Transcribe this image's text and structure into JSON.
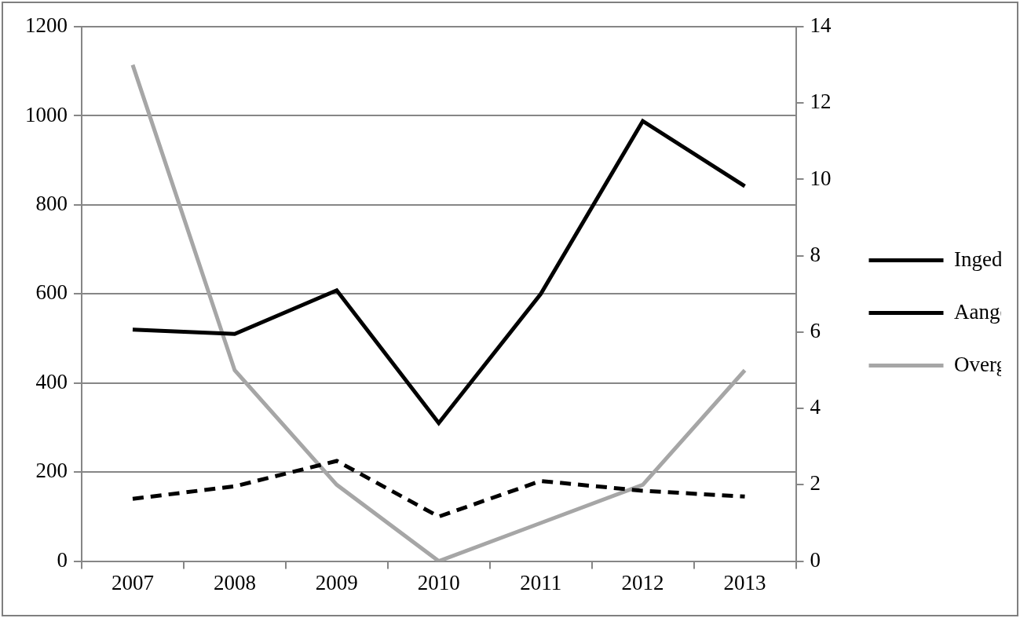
{
  "chart_data": {
    "type": "line",
    "categories": [
      "2007",
      "2008",
      "2009",
      "2010",
      "2011",
      "2012",
      "2013"
    ],
    "series": [
      {
        "name": "Ingediend (linkeras)",
        "color": "#000000",
        "line_style": "solid",
        "axis": "y",
        "values": [
          520,
          510,
          608,
          310,
          600,
          988,
          842
        ]
      },
      {
        "name": "Aangenomen (linkeras)",
        "color": "#000000",
        "line_style": "dashed",
        "axis": "y",
        "values": [
          140,
          168,
          225,
          100,
          180,
          158,
          145
        ]
      },
      {
        "name": "Overgenomen (rechteras)",
        "color": "#a6a6a6",
        "line_style": "solid",
        "axis": "y2",
        "values": [
          13,
          5,
          2,
          0,
          1,
          2,
          5
        ]
      }
    ],
    "ylim": [
      0,
      1200
    ],
    "yticks": [
      0,
      200,
      400,
      600,
      800,
      1000,
      1200
    ],
    "y2lim": [
      0,
      14
    ],
    "y2ticks": [
      0,
      2,
      4,
      6,
      8,
      10,
      12,
      14
    ],
    "grid": true,
    "legend": "right"
  }
}
